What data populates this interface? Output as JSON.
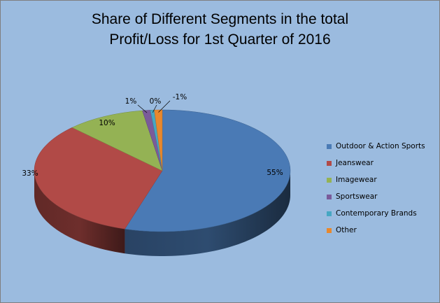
{
  "chart_data": {
    "type": "pie",
    "title": "Share of Different Segments in the total Profit/Loss for 1st Quarter of 2016",
    "title_lines": [
      "Share of Different Segments in the total",
      "Profit/Loss for 1st Quarter of 2016"
    ],
    "style": "3d",
    "legend_position": "right",
    "slices": [
      {
        "label": "Outdoor & Action Sports",
        "value": 55,
        "display": "55%",
        "color": "#4a7ab5"
      },
      {
        "label": "Jeanswear",
        "value": 33,
        "display": "33%",
        "color": "#b14a47"
      },
      {
        "label": "Imagewear",
        "value": 10,
        "display": "10%",
        "color": "#94b254"
      },
      {
        "label": "Sportswear",
        "value": 1,
        "display": "1%",
        "color": "#7a5b9a"
      },
      {
        "label": "Contemporary Brands",
        "value": 0,
        "display": "0%",
        "color": "#46a7c2"
      },
      {
        "label": "Other",
        "value": -1,
        "display": "-1%",
        "color": "#e8882d"
      }
    ]
  }
}
